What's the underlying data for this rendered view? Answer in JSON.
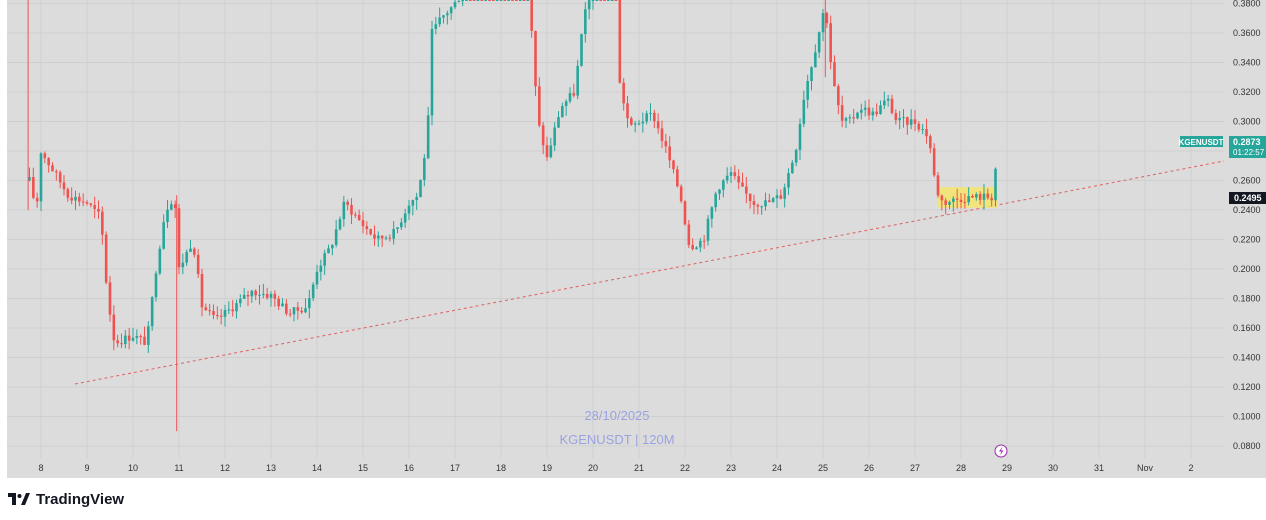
{
  "footer": {
    "brand": "TradingView",
    "logo_icon": "tradingview-logo-icon"
  },
  "watermark": {
    "date": "28/10/2025",
    "symbol_line": "KGENUSDT | 120M"
  },
  "price_tags": {
    "symbol": "KGENUSDT",
    "last_price": "0.2873",
    "countdown": "01:22:57",
    "crosshair_price": "0.2495"
  },
  "colors": {
    "up": "#26a69a",
    "down": "#ef5350",
    "background": "#dcdcdc",
    "trendline": "#e06060",
    "highlight": "#f5e56b",
    "watermark": "#9aa3e0"
  },
  "chart_data": {
    "type": "candlestick",
    "title": "",
    "xlabel": "",
    "ylabel": "",
    "ylim": [
      0.07,
      0.39
    ],
    "x_ticks": [
      "8",
      "9",
      "10",
      "11",
      "12",
      "13",
      "14",
      "15",
      "16",
      "17",
      "18",
      "19",
      "20",
      "21",
      "22",
      "23",
      "24",
      "25",
      "26",
      "27",
      "28",
      "29",
      "30",
      "31",
      "Nov",
      "2"
    ],
    "y_ticks": [
      "0.0800",
      "0.1000",
      "0.1200",
      "0.1400",
      "0.1600",
      "0.1800",
      "0.2000",
      "0.2200",
      "0.2400",
      "0.2600",
      "0.2800",
      "0.3000",
      "0.3200",
      "0.3400",
      "0.3600",
      "0.3800"
    ],
    "grid": true,
    "price_path": [
      [
        7.7,
        0.39
      ],
      [
        7.75,
        0.26
      ],
      [
        7.9,
        0.24
      ],
      [
        8.0,
        0.28
      ],
      [
        8.3,
        0.265
      ],
      [
        8.6,
        0.25
      ],
      [
        9.0,
        0.245
      ],
      [
        9.3,
        0.235
      ],
      [
        9.45,
        0.18
      ],
      [
        9.6,
        0.15
      ],
      [
        10.0,
        0.155
      ],
      [
        10.3,
        0.15
      ],
      [
        10.5,
        0.2
      ],
      [
        10.7,
        0.24
      ],
      [
        10.9,
        0.25
      ],
      [
        11.0,
        0.2
      ],
      [
        11.3,
        0.22
      ],
      [
        11.5,
        0.175
      ],
      [
        11.8,
        0.165
      ],
      [
        12.2,
        0.175
      ],
      [
        12.6,
        0.185
      ],
      [
        13.0,
        0.182
      ],
      [
        13.4,
        0.17
      ],
      [
        13.8,
        0.175
      ],
      [
        14.0,
        0.2
      ],
      [
        14.3,
        0.215
      ],
      [
        14.6,
        0.245
      ],
      [
        15.0,
        0.23
      ],
      [
        15.3,
        0.22
      ],
      [
        15.7,
        0.225
      ],
      [
        16.0,
        0.245
      ],
      [
        16.2,
        0.25
      ],
      [
        16.4,
        0.29
      ],
      [
        16.5,
        0.36
      ],
      [
        16.7,
        0.37
      ],
      [
        17.0,
        0.38
      ],
      [
        17.2,
        0.39
      ],
      [
        18.6,
        0.39
      ],
      [
        18.8,
        0.3
      ],
      [
        19.0,
        0.275
      ],
      [
        19.3,
        0.31
      ],
      [
        19.6,
        0.32
      ],
      [
        19.8,
        0.37
      ],
      [
        20.0,
        0.39
      ],
      [
        20.5,
        0.39
      ],
      [
        20.55,
        0.33
      ],
      [
        20.8,
        0.295
      ],
      [
        21.0,
        0.3
      ],
      [
        21.3,
        0.305
      ],
      [
        21.6,
        0.28
      ],
      [
        21.9,
        0.25
      ],
      [
        22.1,
        0.215
      ],
      [
        22.4,
        0.22
      ],
      [
        22.7,
        0.255
      ],
      [
        23.0,
        0.265
      ],
      [
        23.2,
        0.255
      ],
      [
        23.5,
        0.245
      ],
      [
        23.8,
        0.245
      ],
      [
        24.1,
        0.25
      ],
      [
        24.4,
        0.28
      ],
      [
        24.6,
        0.32
      ],
      [
        24.8,
        0.345
      ],
      [
        25.05,
        0.38
      ],
      [
        25.2,
        0.33
      ],
      [
        25.4,
        0.3
      ],
      [
        25.6,
        0.3
      ],
      [
        25.8,
        0.31
      ],
      [
        26.1,
        0.305
      ],
      [
        26.4,
        0.315
      ],
      [
        26.6,
        0.3
      ],
      [
        27.0,
        0.3
      ],
      [
        27.3,
        0.29
      ],
      [
        27.45,
        0.255
      ],
      [
        27.6,
        0.245
      ],
      [
        28.0,
        0.248
      ],
      [
        28.4,
        0.249
      ],
      [
        28.7,
        0.249
      ],
      [
        28.8,
        0.2873
      ]
    ],
    "trendline": {
      "style": "dashed",
      "from": [
        "9 (approx. 8.7)",
        0.1225
      ],
      "to": [
        "beyond 2",
        0.2675
      ]
    },
    "highlight_box": {
      "x": [
        "27.5",
        "28.8"
      ],
      "y": [
        0.2415,
        0.2555
      ]
    },
    "last_price": 0.2873,
    "crosshair_price": 0.2495
  }
}
